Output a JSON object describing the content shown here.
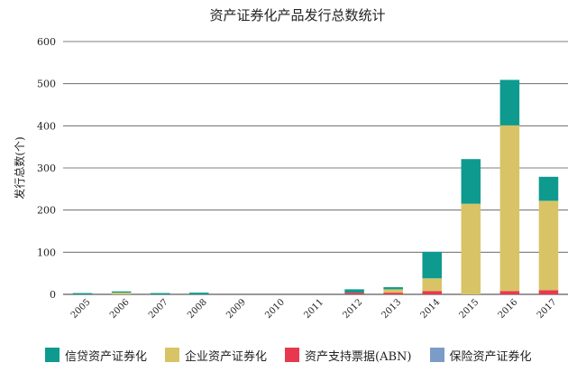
{
  "chart_data": {
    "type": "bar",
    "stacked": true,
    "title": "资产证券化产品发行总数统计",
    "ylabel": "发行总数(个)",
    "xlabel": "",
    "ylim": [
      0,
      600
    ],
    "yticks": [
      0,
      100,
      200,
      300,
      400,
      500,
      600
    ],
    "grid": true,
    "legend_position": "bottom",
    "categories": [
      "2005",
      "2006",
      "2007",
      "2008",
      "2009",
      "2010",
      "2011",
      "2012",
      "2013",
      "2014",
      "2015",
      "2016",
      "2017"
    ],
    "series": [
      {
        "name": "资产支持票据(ABN)",
        "color": "#e8384f",
        "values": [
          0,
          0,
          0,
          0,
          0,
          0,
          0,
          4,
          4,
          8,
          0,
          8,
          10
        ]
      },
      {
        "name": "企业资产证券化",
        "color": "#d8c466",
        "values": [
          0,
          4,
          0,
          0,
          0,
          0,
          0,
          0,
          8,
          30,
          215,
          393,
          212
        ]
      },
      {
        "name": "信贷资产证券化",
        "color": "#0f9a8f",
        "values": [
          3,
          3,
          3,
          4,
          0,
          0,
          0,
          8,
          5,
          63,
          106,
          108,
          57
        ]
      },
      {
        "name": "保险资产证券化",
        "color": "#7a9cc6",
        "values": [
          0,
          0,
          0,
          0,
          0,
          0,
          0,
          0,
          0,
          0,
          0,
          0,
          0
        ]
      }
    ],
    "legend_order": [
      "信贷资产证券化",
      "企业资产证券化",
      "资产支持票据(ABN)",
      "保险资产证券化"
    ]
  }
}
